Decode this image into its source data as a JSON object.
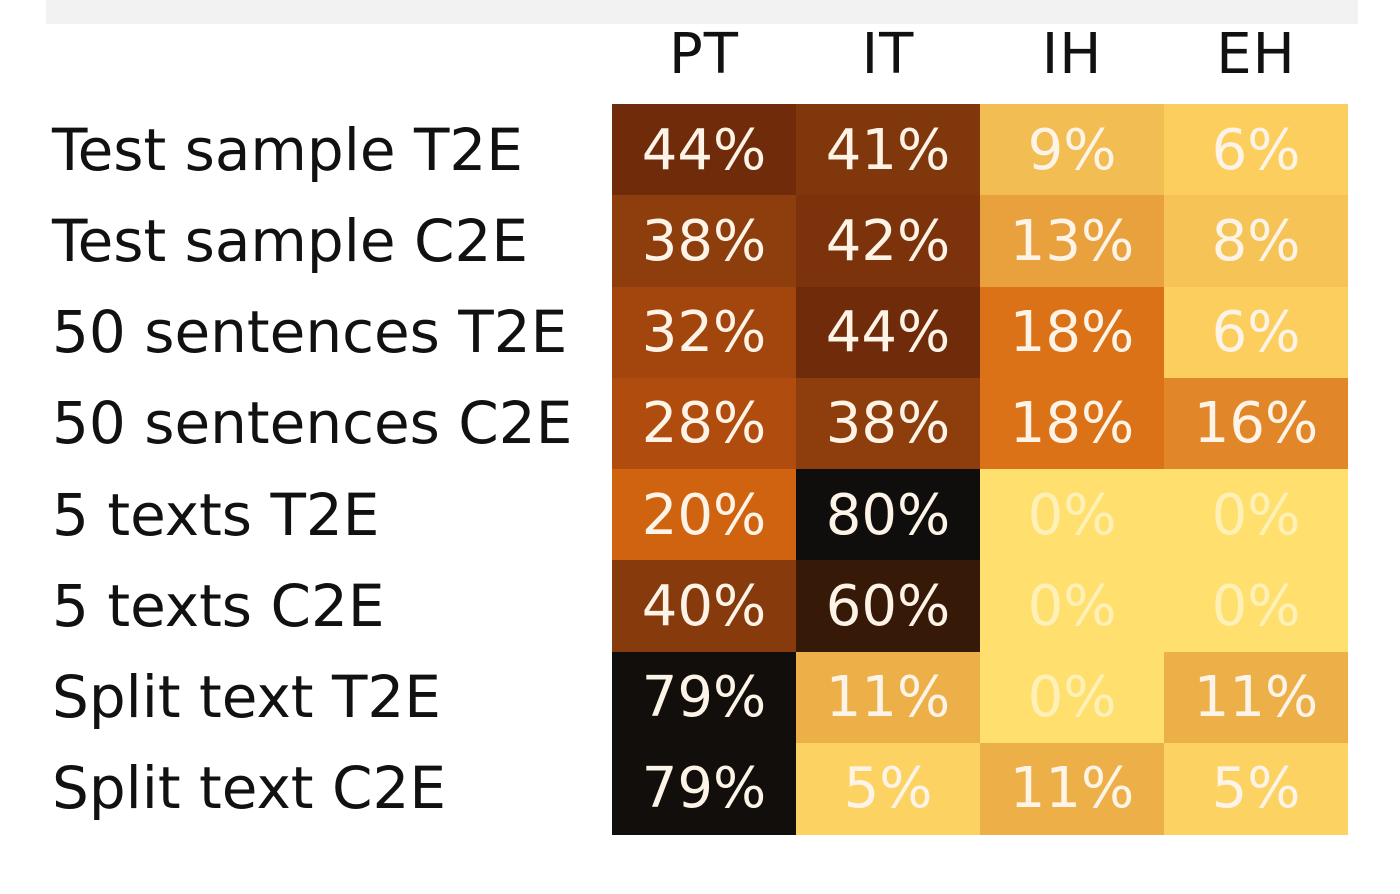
{
  "chart_data": {
    "type": "heatmap",
    "columns": [
      "PT",
      "IT",
      "IH",
      "EH"
    ],
    "rows": [
      "Test sample T2E",
      "Test sample C2E",
      "50 sentences T2E",
      "50 sentences C2E",
      "5 texts T2E",
      "5 texts C2E",
      "Split text T2E",
      "Split text C2E"
    ],
    "values": [
      [
        44,
        41,
        9,
        6
      ],
      [
        38,
        42,
        13,
        8
      ],
      [
        32,
        44,
        18,
        6
      ],
      [
        28,
        38,
        18,
        16
      ],
      [
        20,
        80,
        0,
        0
      ],
      [
        40,
        60,
        0,
        0
      ],
      [
        79,
        11,
        0,
        11
      ],
      [
        79,
        5,
        11,
        5
      ]
    ],
    "labels": [
      [
        "44%",
        "41%",
        "9%",
        "6%"
      ],
      [
        "38%",
        "42%",
        "13%",
        "8%"
      ],
      [
        "32%",
        "44%",
        "18%",
        "6%"
      ],
      [
        "28%",
        "38%",
        "18%",
        "16%"
      ],
      [
        "20%",
        "80%",
        "0%",
        "0%"
      ],
      [
        "40%",
        "60%",
        "0%",
        "0%"
      ],
      [
        "79%",
        "11%",
        "0%",
        "11%"
      ],
      [
        "79%",
        "5%",
        "11%",
        "5%"
      ]
    ],
    "colormap": "afmhot_r",
    "vmin": 0,
    "vmax": 80,
    "grid": false,
    "legend": "none"
  }
}
